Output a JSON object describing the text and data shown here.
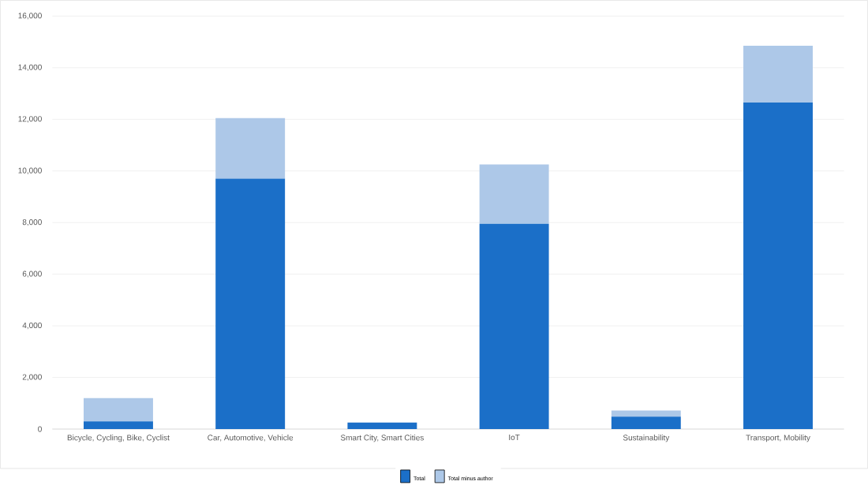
{
  "chart_data": {
    "type": "bar",
    "stacked": true,
    "categories": [
      "Bicycle, Cycling, Bike, Cyclist",
      "Car, Automotive, Vehicle",
      "Smart City, Smart Cities",
      "IoT",
      "Sustainability",
      "Transport, Mobility"
    ],
    "series": [
      {
        "name": "Total",
        "color": "#1b6fc8",
        "values": [
          300,
          9700,
          250,
          7950,
          480,
          12650
        ]
      },
      {
        "name": "Total minus author",
        "color": "#adc8e8",
        "values": [
          900,
          2350,
          null,
          2300,
          240,
          2200
        ]
      }
    ],
    "ylim": [
      0,
      16000
    ],
    "yticks": [
      {
        "value": 0,
        "label": "0"
      },
      {
        "value": 2000,
        "label": "2,000"
      },
      {
        "value": 4000,
        "label": "4,000"
      },
      {
        "value": 6000,
        "label": "6,000"
      },
      {
        "value": 8000,
        "label": "8,000"
      },
      {
        "value": 10000,
        "label": "10,000"
      },
      {
        "value": 12000,
        "label": "12,000"
      },
      {
        "value": 14000,
        "label": "14,000"
      },
      {
        "value": 16000,
        "label": "16,000"
      }
    ],
    "grid": "y",
    "legend": "bottom"
  }
}
